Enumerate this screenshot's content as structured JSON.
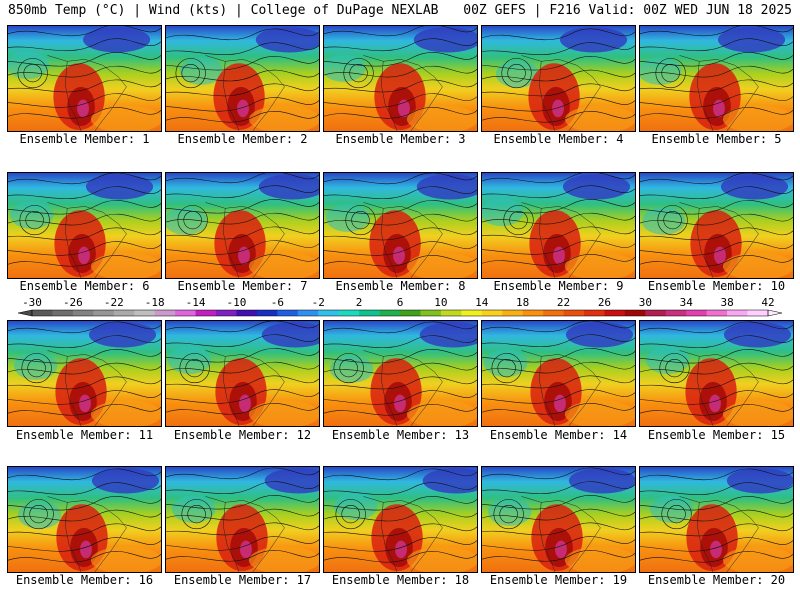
{
  "header": {
    "left": "850mb Temp (°C) | Wind (kts) | College of DuPage NEXLAB",
    "right": "00Z GEFS | F216 Valid: 00Z WED JUN 18 2025"
  },
  "colorbar": {
    "labels": [
      "-30",
      "-26",
      "-22",
      "-18",
      "-14",
      "-10",
      "-6",
      "-2",
      "2",
      "6",
      "10",
      "14",
      "18",
      "22",
      "26",
      "30",
      "34",
      "38",
      "42"
    ],
    "colors": [
      "#5a5a5a",
      "#6e6e6e",
      "#828282",
      "#969696",
      "#aaaaaa",
      "#bebebe",
      "#cc99cc",
      "#dd66dd",
      "#c020c0",
      "#8020c0",
      "#4010b0",
      "#1830c0",
      "#2060e0",
      "#3090f0",
      "#30c0e8",
      "#20d8c0",
      "#10c090",
      "#20b050",
      "#40a020",
      "#80c020",
      "#c0d820",
      "#f0f020",
      "#f8d020",
      "#f8b018",
      "#f89010",
      "#f07010",
      "#e85010",
      "#e03010",
      "#c81010",
      "#a00808",
      "#b02050",
      "#c83080",
      "#e040b0",
      "#f070d0",
      "#f8a8f0",
      "#ffd0ff"
    ]
  },
  "panels": [
    {
      "caption": "Ensemble Member: 1"
    },
    {
      "caption": "Ensemble Member: 2"
    },
    {
      "caption": "Ensemble Member: 3"
    },
    {
      "caption": "Ensemble Member: 4"
    },
    {
      "caption": "Ensemble Member: 5"
    },
    {
      "caption": "Ensemble Member: 6"
    },
    {
      "caption": "Ensemble Member: 7"
    },
    {
      "caption": "Ensemble Member: 8"
    },
    {
      "caption": "Ensemble Member: 9"
    },
    {
      "caption": "Ensemble Member: 10"
    },
    {
      "caption": "Ensemble Member: 11"
    },
    {
      "caption": "Ensemble Member: 12"
    },
    {
      "caption": "Ensemble Member: 13"
    },
    {
      "caption": "Ensemble Member: 14"
    },
    {
      "caption": "Ensemble Member: 15"
    },
    {
      "caption": "Ensemble Member: 16"
    },
    {
      "caption": "Ensemble Member: 17"
    },
    {
      "caption": "Ensemble Member: 18"
    },
    {
      "caption": "Ensemble Member: 19"
    },
    {
      "caption": "Ensemble Member: 20"
    }
  ]
}
